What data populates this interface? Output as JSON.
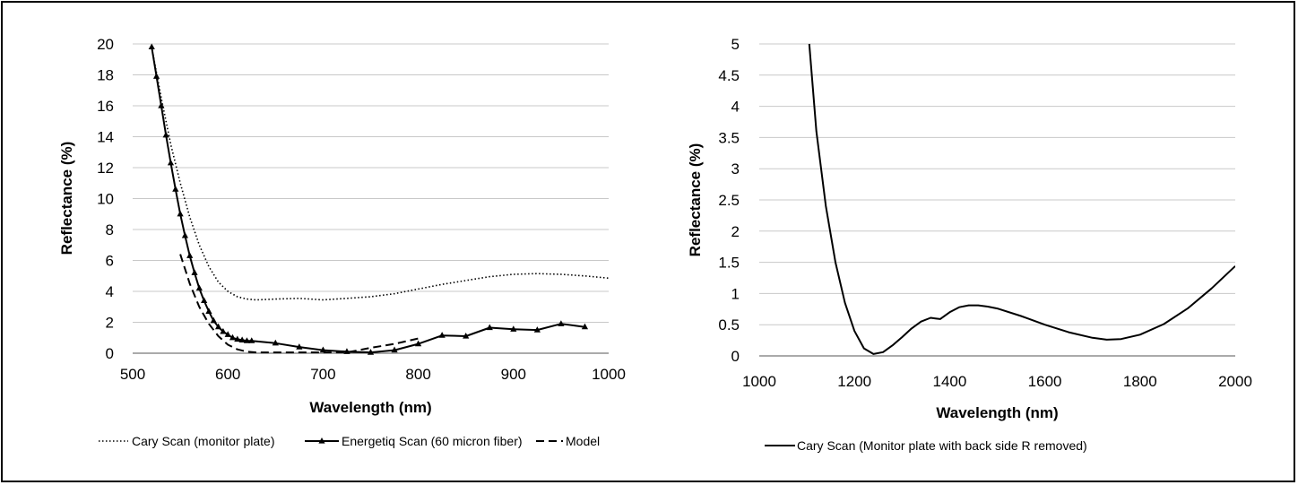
{
  "chart_data": [
    {
      "type": "line",
      "xlabel": "Wavelength (nm)",
      "ylabel": "Reflectance (%)",
      "xlim": [
        500,
        1000
      ],
      "ylim": [
        0,
        20
      ],
      "x_ticks": [
        "500",
        "600",
        "700",
        "800",
        "900",
        "1000"
      ],
      "y_ticks": [
        "0",
        "2",
        "4",
        "6",
        "8",
        "10",
        "12",
        "14",
        "16",
        "18",
        "20"
      ],
      "grid": "horizontal",
      "legend_position": "bottom",
      "series": [
        {
          "name": "Cary Scan (monitor plate)",
          "style": "dotted",
          "color": "#000000",
          "x": [
            520,
            530,
            540,
            550,
            560,
            570,
            580,
            590,
            600,
            610,
            620,
            630,
            650,
            675,
            700,
            725,
            750,
            775,
            800,
            825,
            850,
            875,
            900,
            925,
            950,
            975,
            1000
          ],
          "y": [
            19.8,
            16.5,
            13.5,
            11.0,
            8.8,
            7.0,
            5.6,
            4.6,
            4.0,
            3.65,
            3.5,
            3.45,
            3.5,
            3.55,
            3.45,
            3.55,
            3.65,
            3.85,
            4.15,
            4.45,
            4.7,
            4.95,
            5.1,
            5.15,
            5.1,
            5.0,
            4.85
          ]
        },
        {
          "name": "Energetiq Scan (60 micron fiber)",
          "style": "solid-triangle",
          "color": "#000000",
          "x": [
            520,
            525,
            530,
            535,
            540,
            545,
            550,
            555,
            560,
            565,
            570,
            575,
            580,
            585,
            590,
            595,
            600,
            605,
            610,
            615,
            620,
            625,
            650,
            675,
            700,
            725,
            750,
            775,
            800,
            825,
            850,
            875,
            900,
            925,
            950,
            975
          ],
          "y": [
            19.8,
            17.9,
            16.0,
            14.1,
            12.3,
            10.6,
            9.0,
            7.6,
            6.3,
            5.2,
            4.2,
            3.4,
            2.7,
            2.1,
            1.7,
            1.4,
            1.2,
            1.0,
            0.9,
            0.85,
            0.8,
            0.8,
            0.65,
            0.4,
            0.2,
            0.1,
            0.05,
            0.2,
            0.6,
            1.15,
            1.1,
            1.65,
            1.55,
            1.5,
            1.9,
            1.7
          ]
        },
        {
          "name": "Model",
          "style": "dashed",
          "color": "#000000",
          "x": [
            550,
            560,
            570,
            580,
            590,
            600,
            610,
            620,
            630,
            650,
            700,
            725,
            750,
            775,
            800
          ],
          "y": [
            6.4,
            4.5,
            3.0,
            1.9,
            1.1,
            0.55,
            0.25,
            0.1,
            0.05,
            0.05,
            0.05,
            0.05,
            0.35,
            0.6,
            0.95
          ]
        }
      ]
    },
    {
      "type": "line",
      "xlabel": "Wavelength (nm)",
      "ylabel": "Reflectance (%)",
      "xlim": [
        1000,
        2000
      ],
      "ylim": [
        0,
        5
      ],
      "x_ticks": [
        "1000",
        "1200",
        "1400",
        "1600",
        "1800",
        "2000"
      ],
      "y_ticks": [
        "0",
        "0.5",
        "1",
        "1.5",
        "2",
        "2.5",
        "3",
        "3.5",
        "4",
        "4.5",
        "5"
      ],
      "grid": "horizontal",
      "legend_position": "bottom",
      "series": [
        {
          "name": "Cary Scan (Monitor plate with back side R removed)",
          "style": "solid",
          "color": "#000000",
          "x": [
            1105,
            1120,
            1140,
            1160,
            1180,
            1200,
            1220,
            1240,
            1260,
            1280,
            1300,
            1320,
            1340,
            1360,
            1370,
            1380,
            1400,
            1420,
            1440,
            1460,
            1480,
            1500,
            1550,
            1600,
            1650,
            1700,
            1730,
            1760,
            1800,
            1850,
            1900,
            1950,
            2000
          ],
          "y": [
            5.0,
            3.6,
            2.4,
            1.5,
            0.85,
            0.4,
            0.12,
            0.03,
            0.06,
            0.17,
            0.3,
            0.44,
            0.55,
            0.61,
            0.6,
            0.59,
            0.7,
            0.78,
            0.81,
            0.81,
            0.79,
            0.76,
            0.64,
            0.5,
            0.38,
            0.29,
            0.26,
            0.27,
            0.34,
            0.51,
            0.76,
            1.08,
            1.44
          ]
        }
      ]
    }
  ]
}
